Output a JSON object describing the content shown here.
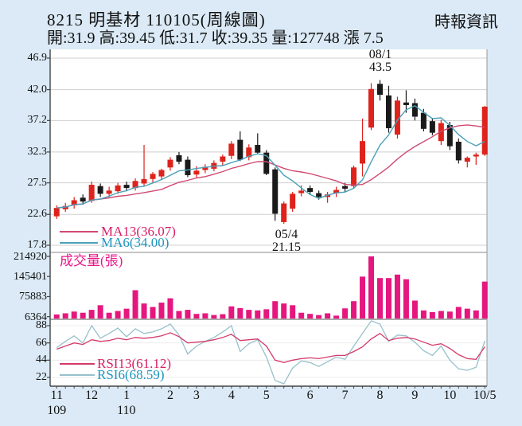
{
  "header": {
    "title": "8215 明基材 110105(周線圖)",
    "source": "時報資訊",
    "quote_line": "開:31.9 高:39.45 低:31.7 收:39.35 量:127748 漲 7.5"
  },
  "price_pane": {
    "y_ticks": [
      "46.9",
      "42.0",
      "37.2",
      "32.3",
      "27.5",
      "22.6",
      "17.8"
    ],
    "ma13_label": "MA13(36.07)",
    "ma6_label": "MA6(34.00)",
    "peak_annotation": {
      "date": "08/1",
      "value": "43.5"
    },
    "trough_annotation": {
      "date": "05/4",
      "value": "21.15"
    }
  },
  "volume_pane": {
    "label": "成交量(張)",
    "y_ticks": [
      "214920",
      "145401",
      "75883",
      "6364"
    ]
  },
  "rsi_pane": {
    "y_ticks": [
      "88",
      "66",
      "44",
      "22"
    ],
    "rsi13_label": "RSI13(61.12)",
    "rsi6_label": "RSI6(68.59)"
  },
  "x_axis": {
    "months": [
      {
        "label": "11",
        "index": 0
      },
      {
        "label": "12",
        "index": 4
      },
      {
        "label": "1",
        "index": 8
      },
      {
        "label": "2",
        "index": 13
      },
      {
        "label": "3",
        "index": 16
      },
      {
        "label": "4",
        "index": 20
      },
      {
        "label": "5",
        "index": 24
      },
      {
        "label": "6",
        "index": 29
      },
      {
        "label": "7",
        "index": 33
      },
      {
        "label": "8",
        "index": 37
      },
      {
        "label": "9",
        "index": 41
      },
      {
        "label": "10",
        "index": 45
      },
      {
        "label": "10/5",
        "index": 49
      }
    ],
    "years": [
      {
        "label": "109",
        "index": 0
      },
      {
        "label": "110",
        "index": 8
      }
    ]
  },
  "colors": {
    "background": "#dbeaf6",
    "pane": "#ffffff",
    "grid": "#cfcfcf",
    "spine": "#444444",
    "up_candle": "#de221c",
    "down_candle": "#1a1a1a",
    "ma13_line": "#d04a72",
    "ma6_line": "#4aa0ba",
    "rsi13_line": "#d43b6b",
    "rsi6_line": "#97c1cb",
    "volume_bar": "#e5177f"
  },
  "chart_data": {
    "type": "candlestick",
    "panes": [
      "price",
      "volume",
      "rsi"
    ],
    "price_axis": {
      "min": 17.8,
      "max": 46.9,
      "gridlines": [
        46.9,
        42.0,
        37.2,
        32.3,
        27.5,
        22.6,
        17.8
      ]
    },
    "volume_axis": {
      "ticks": [
        214920,
        145401,
        75883,
        6364
      ]
    },
    "rsi_axis": {
      "ticks": [
        88,
        66,
        44,
        22
      ]
    },
    "last_week": {
      "open": 31.9,
      "high": 39.45,
      "low": 31.7,
      "close": 39.35,
      "volume": 127748,
      "change": 7.5
    },
    "candles": [
      [
        22.3,
        24.0,
        21.9,
        23.6
      ],
      [
        23.4,
        24.4,
        23.0,
        23.9
      ],
      [
        24.0,
        25.3,
        23.5,
        24.8
      ],
      [
        25.2,
        25.7,
        24.1,
        24.6
      ],
      [
        24.7,
        27.7,
        24.4,
        27.2
      ],
      [
        27.0,
        27.4,
        25.3,
        25.8
      ],
      [
        25.8,
        26.9,
        25.3,
        26.3
      ],
      [
        26.2,
        27.5,
        25.8,
        27.1
      ],
      [
        27.2,
        27.7,
        26.2,
        26.7
      ],
      [
        26.7,
        28.2,
        26.3,
        27.8
      ],
      [
        27.4,
        33.4,
        26.9,
        28.1
      ],
      [
        28.1,
        29.2,
        27.5,
        28.9
      ],
      [
        28.5,
        29.7,
        28.0,
        29.5
      ],
      [
        29.9,
        31.5,
        29.4,
        31.1
      ],
      [
        31.8,
        32.3,
        30.4,
        30.8
      ],
      [
        31.1,
        31.6,
        28.4,
        28.7
      ],
      [
        28.8,
        30.1,
        28.3,
        29.4
      ],
      [
        29.5,
        30.4,
        29.0,
        30.0
      ],
      [
        29.7,
        31.0,
        29.3,
        30.6
      ],
      [
        30.8,
        31.9,
        30.2,
        31.6
      ],
      [
        31.7,
        34.0,
        31.2,
        33.6
      ],
      [
        34.2,
        35.5,
        30.9,
        31.1
      ],
      [
        31.5,
        33.5,
        31.0,
        33.0
      ],
      [
        33.4,
        35.2,
        32.0,
        32.2
      ],
      [
        32.2,
        32.6,
        28.7,
        28.9
      ],
      [
        29.6,
        29.9,
        21.6,
        22.7
      ],
      [
        21.4,
        24.6,
        21.15,
        24.3
      ],
      [
        23.5,
        26.1,
        23.0,
        25.8
      ],
      [
        25.9,
        27.1,
        25.4,
        26.3
      ],
      [
        26.7,
        27.1,
        25.7,
        26.1
      ],
      [
        25.9,
        26.3,
        24.9,
        25.3
      ],
      [
        25.3,
        26.1,
        24.4,
        25.7
      ],
      [
        25.9,
        26.9,
        25.3,
        26.4
      ],
      [
        27.0,
        27.5,
        26.1,
        26.6
      ],
      [
        27.0,
        30.2,
        26.7,
        29.9
      ],
      [
        30.5,
        37.5,
        28.5,
        34.0
      ],
      [
        36.1,
        43.0,
        35.7,
        42.1
      ],
      [
        42.9,
        43.5,
        40.3,
        41.2
      ],
      [
        41.1,
        42.6,
        35.3,
        36.0
      ],
      [
        35.0,
        40.9,
        34.4,
        40.3
      ],
      [
        40.0,
        41.9,
        38.4,
        39.6
      ],
      [
        39.9,
        40.6,
        37.2,
        37.8
      ],
      [
        38.4,
        39.0,
        35.5,
        35.9
      ],
      [
        37.1,
        37.6,
        34.9,
        35.3
      ],
      [
        34.0,
        37.3,
        33.4,
        36.8
      ],
      [
        36.5,
        37.0,
        32.6,
        33.2
      ],
      [
        33.9,
        34.4,
        30.5,
        31.0
      ],
      [
        30.8,
        31.6,
        29.9,
        31.4
      ],
      [
        31.6,
        32.2,
        30.3,
        31.9
      ],
      [
        31.9,
        39.45,
        31.7,
        39.35
      ]
    ],
    "volumes": [
      14000,
      18000,
      24000,
      20000,
      30000,
      46000,
      20000,
      26000,
      34000,
      98000,
      52000,
      40000,
      55000,
      70000,
      26000,
      30000,
      16000,
      18000,
      12000,
      15000,
      42000,
      36000,
      30000,
      28000,
      32000,
      60000,
      52000,
      46000,
      20000,
      16000,
      12000,
      18000,
      10000,
      35000,
      60000,
      145000,
      215000,
      140000,
      140000,
      152000,
      136000,
      62000,
      28000,
      22000,
      26000,
      24000,
      40000,
      34000,
      28000,
      127748
    ],
    "rsi6": [
      60,
      68,
      75,
      66,
      88,
      72,
      78,
      85,
      74,
      84,
      78,
      80,
      84,
      90,
      76,
      52,
      62,
      68,
      73,
      80,
      88,
      55,
      65,
      70,
      48,
      18,
      14,
      34,
      43,
      41,
      36,
      42,
      48,
      45,
      62,
      78,
      95,
      90,
      68,
      76,
      75,
      67,
      56,
      50,
      62,
      44,
      33,
      31,
      35,
      68.6
    ],
    "rsi13": [
      58,
      62,
      66,
      64,
      70,
      68,
      69,
      72,
      70,
      73,
      72,
      73,
      75,
      79,
      74,
      66,
      67,
      68,
      70,
      73,
      77,
      69,
      70,
      71,
      62,
      44,
      41,
      44,
      46,
      47,
      46,
      48,
      50,
      50,
      55,
      61,
      71,
      78,
      69,
      72,
      73,
      71,
      67,
      63,
      65,
      59,
      51,
      46,
      45,
      61.1
    ]
  }
}
